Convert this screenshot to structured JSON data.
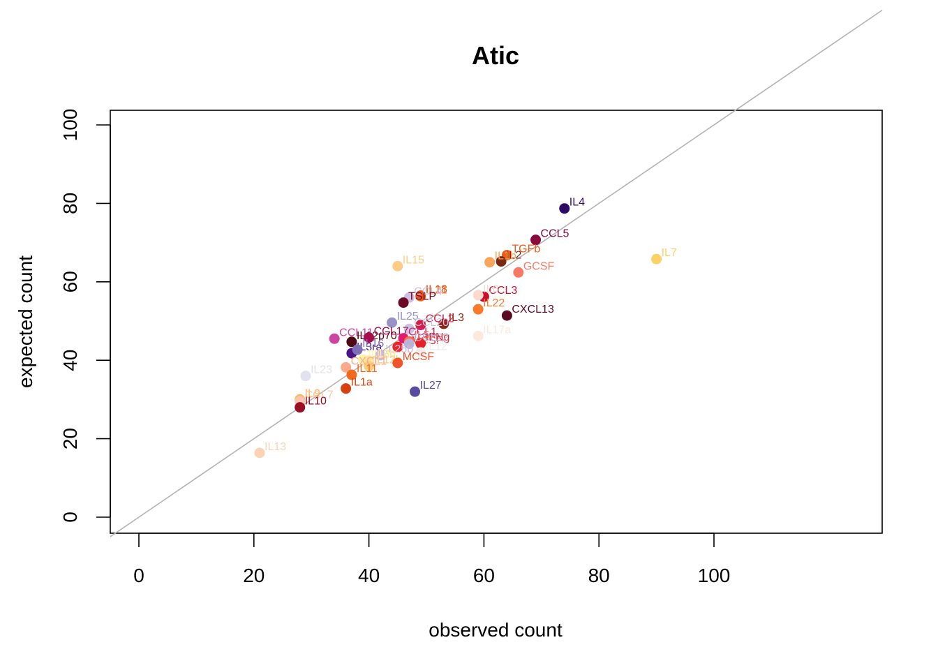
{
  "chart_data": {
    "type": "scatter",
    "title": "Atic",
    "xlabel": "observed count",
    "ylabel": "expected count",
    "xlim": [
      0,
      100
    ],
    "ylim": [
      0,
      100
    ],
    "xticks": [
      "0",
      "20",
      "40",
      "60",
      "80",
      "100"
    ],
    "yticks": [
      "0",
      "20",
      "40",
      "60",
      "80",
      "100"
    ],
    "reference_line": "y = x",
    "points": [
      {
        "label": "IL4",
        "x": 74,
        "y": 78.7,
        "color": "#2d0a64"
      },
      {
        "label": "CCL5",
        "x": 69,
        "y": 70.7,
        "color": "#8a0a3e"
      },
      {
        "label": "IL7",
        "x": 90,
        "y": 65.8,
        "color": "#fdd163"
      },
      {
        "label": "TGFb",
        "x": 64,
        "y": 66.8,
        "color": "#f25a16"
      },
      {
        "label": "IL2",
        "x": 63,
        "y": 65.2,
        "color": "#7a2810"
      },
      {
        "label": "IL1b",
        "x": 61,
        "y": 65,
        "color": "#f8a65a"
      },
      {
        "label": "GCSF",
        "x": 66,
        "y": 62.4,
        "color": "#f77966"
      },
      {
        "label": "IL15",
        "x": 45,
        "y": 64,
        "color": "#fdcd85"
      },
      {
        "label": "IL21",
        "x": 49,
        "y": 56.3,
        "color": "#f58c2a"
      },
      {
        "label": "IL18",
        "x": 49,
        "y": 56.5,
        "color": "#e8521d"
      },
      {
        "label": "CCL3",
        "x": 60,
        "y": 56.2,
        "color": "#c8102e"
      },
      {
        "label": "IL6",
        "x": 59,
        "y": 56.6,
        "color": "#f9dacc"
      },
      {
        "label": "IL22",
        "x": 59,
        "y": 53,
        "color": "#f87a2a"
      },
      {
        "label": "CCL4",
        "x": 47,
        "y": 56,
        "color": "#d2bfe0"
      },
      {
        "label": "TSLP",
        "x": 46,
        "y": 54.7,
        "color": "#6b0a24"
      },
      {
        "label": "CXCL13",
        "x": 64,
        "y": 51.4,
        "color": "#5b0920"
      },
      {
        "label": "IL3",
        "x": 53,
        "y": 49.3,
        "color": "#8b2712"
      },
      {
        "label": "IL25",
        "x": 44,
        "y": 49.6,
        "color": "#9892c6"
      },
      {
        "label": "CCL2",
        "x": 49,
        "y": 49,
        "color": "#d41e46"
      },
      {
        "label": "CCL20",
        "x": 47,
        "y": 48,
        "color": "#c8c6e4"
      },
      {
        "label": "IL17a",
        "x": 59,
        "y": 46.2,
        "color": "#fde9dc"
      },
      {
        "label": "CCL11",
        "x": 34,
        "y": 45.5,
        "color": "#cc44a4"
      },
      {
        "label": "IL12p70",
        "x": 37,
        "y": 44.7,
        "color": "#4e0a14"
      },
      {
        "label": "CCL17",
        "x": 40,
        "y": 45.8,
        "color": "#a80d4a"
      },
      {
        "label": "CCL1",
        "x": 46,
        "y": 45.6,
        "color": "#e01a78"
      },
      {
        "label": "IFNg",
        "x": 49,
        "y": 44.3,
        "color": "#e3202a"
      },
      {
        "label": "GMCSF",
        "x": 45,
        "y": 43.4,
        "color": "#e7262a"
      },
      {
        "label": "IL5",
        "x": 47,
        "y": 44.8,
        "color": "#fb6b52"
      },
      {
        "label": "CCL22",
        "x": 47,
        "y": 44.2,
        "color": "#b8b4d8"
      },
      {
        "label": "IL12",
        "x": 49,
        "y": 42,
        "color": "#eeeeee"
      },
      {
        "label": "IL3ra",
        "x": 37,
        "y": 41.8,
        "color": "#4a1686"
      },
      {
        "label": "IL16",
        "x": 38,
        "y": 42.7,
        "color": "#7c6fb4"
      },
      {
        "label": "IL25b",
        "x": 42,
        "y": 41.3,
        "color": "#cdb7e0"
      },
      {
        "label": "IL13b",
        "x": 39,
        "y": 40.2,
        "color": "#fff3a8"
      },
      {
        "label": "IL5b",
        "x": 40,
        "y": 39.9,
        "color": "#fde4a0"
      },
      {
        "label": "IL12b",
        "x": 40,
        "y": 38.5,
        "color": "#fdcb7a"
      },
      {
        "label": "MCSF",
        "x": 45,
        "y": 39.3,
        "color": "#f2542a"
      },
      {
        "label": "CXCL1",
        "x": 36,
        "y": 38.2,
        "color": "#fbaa8d"
      },
      {
        "label": "IL11",
        "x": 37,
        "y": 36.3,
        "color": "#f06c1c"
      },
      {
        "label": "IL23",
        "x": 29,
        "y": 36,
        "color": "#e2e2ee"
      },
      {
        "label": "IL1a",
        "x": 36,
        "y": 32.8,
        "color": "#d9400f"
      },
      {
        "label": "IL27",
        "x": 48,
        "y": 32,
        "color": "#5a4ba0"
      },
      {
        "label": "IL9",
        "x": 28,
        "y": 30,
        "color": "#fdb64a"
      },
      {
        "label": "CCL7",
        "x": 28,
        "y": 29.6,
        "color": "#fbc6b0"
      },
      {
        "label": "IL10",
        "x": 28,
        "y": 28,
        "color": "#9a0e25"
      },
      {
        "label": "IL13",
        "x": 21,
        "y": 16.4,
        "color": "#fdd3b5"
      }
    ]
  }
}
